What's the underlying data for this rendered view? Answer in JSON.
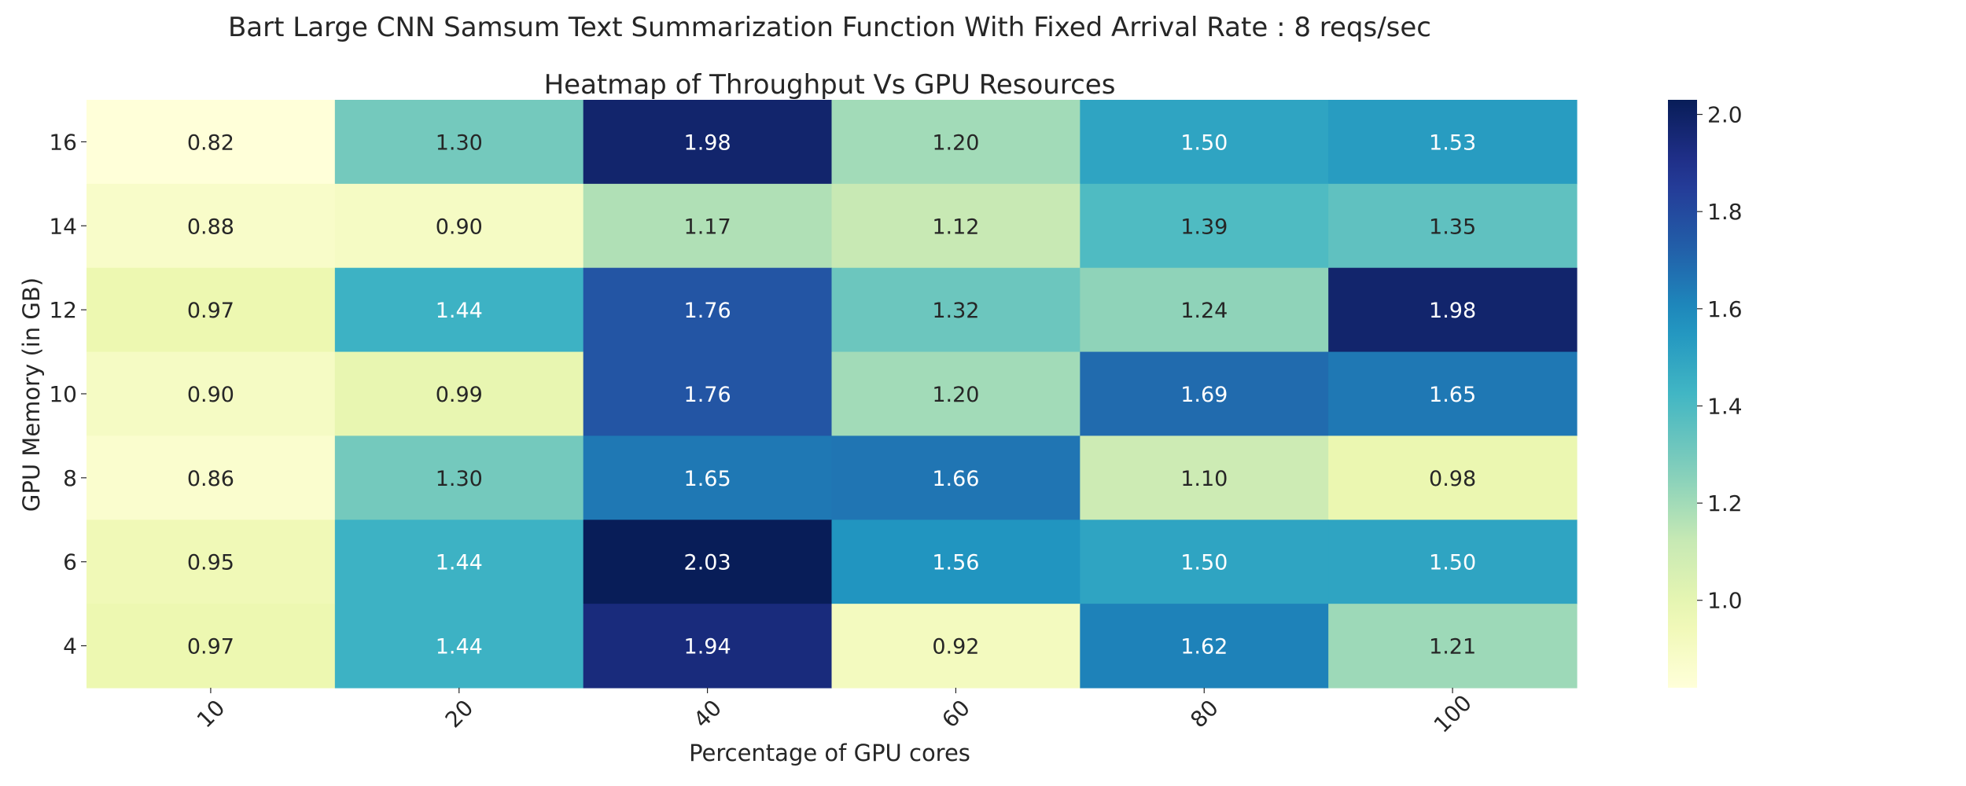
{
  "chart_data": {
    "type": "heatmap",
    "suptitle": "Bart Large CNN Samsum Text Summarization Function With Fixed Arrival Rate : 8 reqs/sec",
    "title": "Heatmap of Throughput Vs GPU Resources",
    "xlabel": "Percentage of GPU cores",
    "ylabel": "GPU Memory (in GB)",
    "x_categories": [
      "10",
      "20",
      "40",
      "60",
      "80",
      "100"
    ],
    "y_categories": [
      "16",
      "14",
      "12",
      "10",
      "8",
      "6",
      "4"
    ],
    "values": [
      [
        0.82,
        1.3,
        1.98,
        1.2,
        1.5,
        1.53
      ],
      [
        0.88,
        0.9,
        1.17,
        1.12,
        1.39,
        1.35
      ],
      [
        0.97,
        1.44,
        1.76,
        1.32,
        1.24,
        1.98
      ],
      [
        0.9,
        0.99,
        1.76,
        1.2,
        1.69,
        1.65
      ],
      [
        0.86,
        1.3,
        1.65,
        1.66,
        1.1,
        0.98
      ],
      [
        0.95,
        1.44,
        2.03,
        1.56,
        1.5,
        1.5
      ],
      [
        0.97,
        1.44,
        1.94,
        0.92,
        1.62,
        1.21
      ]
    ],
    "value_format": "2 decimals",
    "colormap": "YlGnBu",
    "color_range": [
      0.82,
      2.03
    ],
    "colorbar": {
      "ticks": [
        1.0,
        1.2,
        1.4,
        1.6,
        1.8,
        2.0
      ],
      "tick_labels": [
        "1.0",
        "1.2",
        "1.4",
        "1.6",
        "1.8",
        "2.0"
      ]
    },
    "annotation_colors": {
      "dark_text": "#262626",
      "light_text": "#ffffff"
    }
  }
}
